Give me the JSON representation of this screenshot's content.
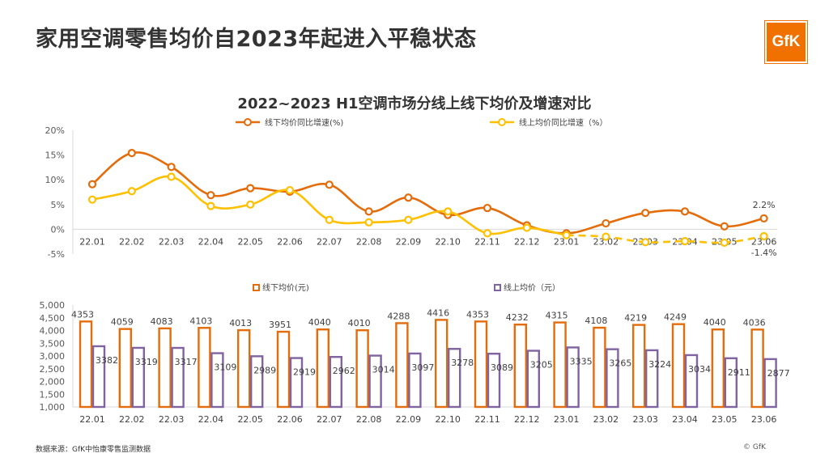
{
  "page": {
    "title": "家用空调零售均价自2023年起进入平稳状态",
    "logo_text": "GfK",
    "source": "数据来源：GfK中怡康零售监测数据",
    "copyright": "© GfK"
  },
  "colors": {
    "offline": "#E46C0A",
    "online": "#FFC000",
    "bar_online": "#8064A2"
  },
  "chart_data": [
    {
      "type": "line",
      "title": "2022~2023 H1空调市场分线上线下均价及增速对比",
      "categories": [
        "22.01",
        "22.02",
        "22.03",
        "22.04",
        "22.05",
        "22.06",
        "22.07",
        "22.08",
        "22.09",
        "22.10",
        "22.11",
        "22.12",
        "23.01",
        "23.02",
        "23.03",
        "23.04",
        "23.05",
        "23.06"
      ],
      "series": [
        {
          "name": "线下均价同比增速(%)",
          "values": [
            9.1,
            15.4,
            12.6,
            6.9,
            8.3,
            7.6,
            9.0,
            3.6,
            6.4,
            2.9,
            4.3,
            0.8,
            -0.8,
            1.2,
            3.3,
            3.6,
            0.6,
            2.2
          ]
        },
        {
          "name": "线上均价同比增速（%）",
          "values": [
            6.0,
            7.7,
            10.6,
            4.7,
            5.0,
            7.9,
            1.9,
            1.4,
            1.9,
            3.6,
            -0.8,
            0.3,
            -1.2,
            -1.5,
            -2.6,
            -2.4,
            -2.7,
            -1.4
          ]
        }
      ],
      "yticks": [
        "-5%",
        "0%",
        "5%",
        "10%",
        "15%",
        "20%"
      ],
      "ylim": [
        -5,
        20
      ],
      "annotations": [
        "2.2%",
        "-1.4%"
      ],
      "grid": false,
      "legend": "top"
    },
    {
      "type": "bar",
      "categories": [
        "22.01",
        "22.02",
        "22.03",
        "22.04",
        "22.05",
        "22.06",
        "22.07",
        "22.08",
        "22.09",
        "22.10",
        "22.11",
        "22.12",
        "23.01",
        "23.02",
        "23.03",
        "23.04",
        "23.05",
        "23.06"
      ],
      "series": [
        {
          "name": "线下均价(元)",
          "values": [
            4353,
            4059,
            4083,
            4103,
            4013,
            3951,
            4040,
            4010,
            4288,
            4416,
            4353,
            4232,
            4315,
            4108,
            4219,
            4249,
            4040,
            4036
          ]
        },
        {
          "name": "线上均价（元）",
          "values": [
            3382,
            3319,
            3317,
            3109,
            2989,
            2919,
            2962,
            3014,
            3097,
            3278,
            3089,
            3205,
            3335,
            3265,
            3224,
            3034,
            2911,
            2877
          ]
        }
      ],
      "yticks": [
        "1,000",
        "1,500",
        "2,000",
        "2,500",
        "3,000",
        "3,500",
        "4,000",
        "4,500",
        "5,000"
      ],
      "ylim": [
        1000,
        5000
      ],
      "grid": false,
      "legend": "top"
    }
  ]
}
